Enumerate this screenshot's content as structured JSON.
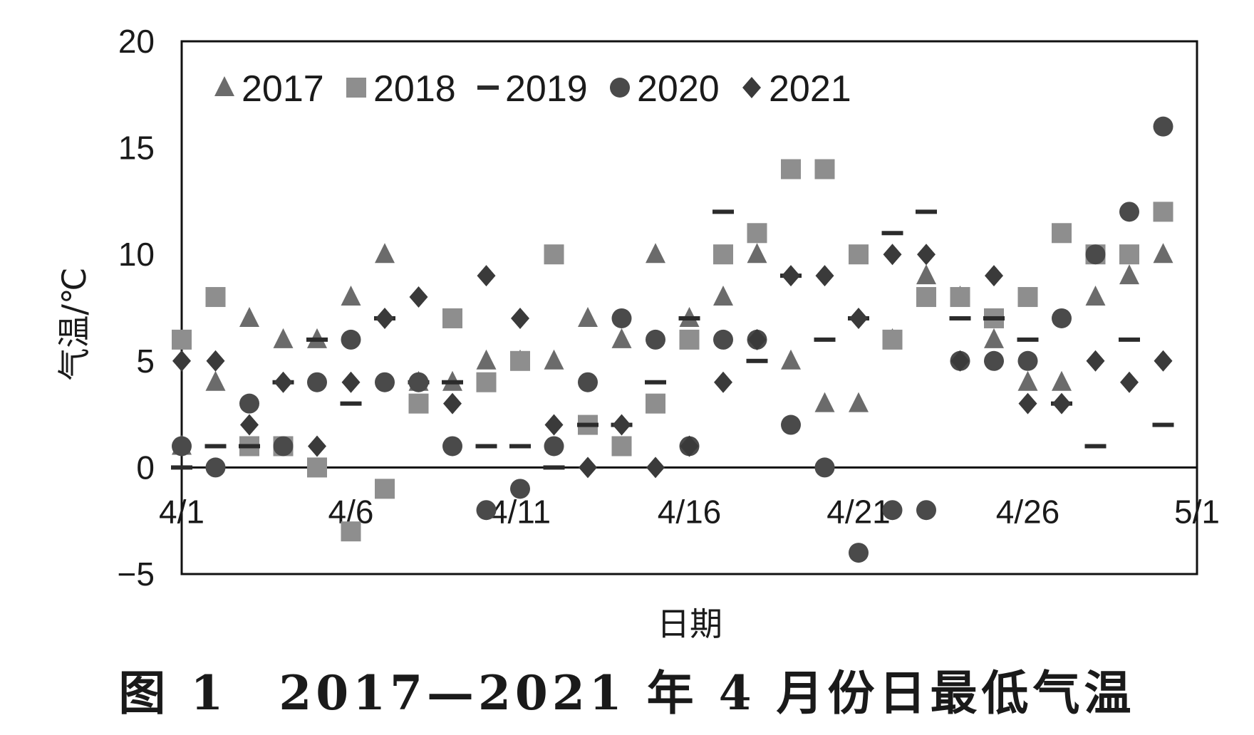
{
  "caption": "图 1　2017—2021 年 4 月份日最低气温",
  "chart_data": {
    "type": "scatter",
    "xlabel": "日期",
    "ylabel": "气温/℃",
    "ylim": [
      -5,
      20
    ],
    "yticks": [
      -5,
      0,
      5,
      10,
      15,
      20
    ],
    "xlim": [
      "4/1",
      "5/1"
    ],
    "xticks": [
      "4/1",
      "4/6",
      "4/11",
      "4/16",
      "4/21",
      "4/26",
      "5/1"
    ],
    "grid": false,
    "legend_position": "top-left",
    "dates": [
      "4/1",
      "4/2",
      "4/3",
      "4/4",
      "4/5",
      "4/6",
      "4/7",
      "4/8",
      "4/9",
      "4/10",
      "4/11",
      "4/12",
      "4/13",
      "4/14",
      "4/15",
      "4/16",
      "4/17",
      "4/18",
      "4/19",
      "4/20",
      "4/21",
      "4/22",
      "4/23",
      "4/24",
      "4/25",
      "4/26",
      "4/27",
      "4/28",
      "4/29",
      "4/30",
      "5/1"
    ],
    "series": [
      {
        "name": "2017",
        "marker": "triangle",
        "color": "#6b6b6b",
        "values": [
          1,
          4,
          7,
          6,
          6,
          8,
          10,
          4,
          4,
          5,
          5,
          5,
          7,
          6,
          10,
          7,
          8,
          10,
          5,
          3,
          3,
          6,
          9,
          8,
          6,
          4,
          4,
          8,
          9,
          10
        ]
      },
      {
        "name": "2018",
        "marker": "square",
        "color": "#8e8e8e",
        "values": [
          6,
          8,
          1,
          1,
          0,
          -3,
          -1,
          3,
          7,
          4,
          5,
          10,
          2,
          1,
          3,
          6,
          10,
          11,
          14,
          14,
          10,
          6,
          8,
          8,
          7,
          8,
          11,
          10,
          10,
          12
        ]
      },
      {
        "name": "2019",
        "marker": "dash",
        "color": "#2b2b2b",
        "values": [
          0,
          1,
          1,
          4,
          6,
          3,
          7,
          4,
          4,
          1,
          1,
          0,
          2,
          2,
          4,
          7,
          12,
          5,
          9,
          6,
          7,
          11,
          12,
          7,
          7,
          6,
          3,
          1,
          6,
          2
        ]
      },
      {
        "name": "2020",
        "marker": "circle",
        "color": "#4a4a4a",
        "values": [
          1,
          0,
          3,
          1,
          4,
          6,
          4,
          4,
          1,
          -2,
          -1,
          1,
          4,
          7,
          6,
          1,
          6,
          6,
          2,
          0,
          -4,
          -2,
          -2,
          5,
          5,
          5,
          7,
          10,
          12,
          16
        ]
      },
      {
        "name": "2021",
        "marker": "diamond",
        "color": "#3a3a3a",
        "values": [
          5,
          5,
          2,
          4,
          1,
          4,
          7,
          8,
          3,
          9,
          7,
          2,
          0,
          2,
          0,
          1,
          4,
          6,
          9,
          9,
          7,
          10,
          10,
          5,
          9,
          3,
          3,
          5,
          4,
          5
        ]
      }
    ]
  }
}
